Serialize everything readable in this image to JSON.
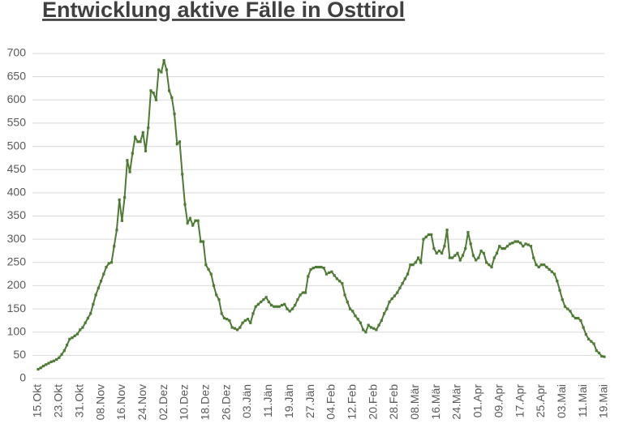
{
  "chart_data": {
    "type": "line",
    "title": "Entwicklung aktive Fälle in Osttirol",
    "color": "#4e7a34",
    "grid": true,
    "ylim": [
      0,
      700
    ],
    "yticks": [
      0,
      50,
      100,
      150,
      200,
      250,
      300,
      350,
      400,
      450,
      500,
      550,
      600,
      650,
      700
    ],
    "categories": [
      "15.Okt",
      null,
      null,
      null,
      null,
      null,
      null,
      null,
      "23.Okt",
      null,
      null,
      null,
      null,
      null,
      null,
      null,
      "31.Okt",
      null,
      null,
      null,
      null,
      null,
      null,
      null,
      "08.Nov",
      null,
      null,
      null,
      null,
      null,
      null,
      null,
      "16.Nov",
      null,
      null,
      null,
      null,
      null,
      null,
      null,
      "24.Nov",
      null,
      null,
      null,
      null,
      null,
      null,
      null,
      "02.Dez",
      null,
      null,
      null,
      null,
      null,
      null,
      null,
      "10.Dez",
      null,
      null,
      null,
      null,
      null,
      null,
      null,
      "18.Dez",
      null,
      null,
      null,
      null,
      null,
      null,
      null,
      "26.Dez",
      null,
      null,
      null,
      null,
      null,
      null,
      null,
      "03.Jän",
      null,
      null,
      null,
      null,
      null,
      null,
      null,
      "11.Jän",
      null,
      null,
      null,
      null,
      null,
      null,
      null,
      "19.Jän",
      null,
      null,
      null,
      null,
      null,
      null,
      null,
      "27.Jän",
      null,
      null,
      null,
      null,
      null,
      null,
      null,
      "04.Feb",
      null,
      null,
      null,
      null,
      null,
      null,
      null,
      "12.Feb",
      null,
      null,
      null,
      null,
      null,
      null,
      null,
      "20.Feb",
      null,
      null,
      null,
      null,
      null,
      null,
      null,
      "28.Feb",
      null,
      null,
      null,
      null,
      null,
      null,
      null,
      "08.Mär",
      null,
      null,
      null,
      null,
      null,
      null,
      null,
      "16.Mär",
      null,
      null,
      null,
      null,
      null,
      null,
      null,
      "24.Mär",
      null,
      null,
      null,
      null,
      null,
      null,
      null,
      "01.Apr",
      null,
      null,
      null,
      null,
      null,
      null,
      null,
      "09.Apr",
      null,
      null,
      null,
      null,
      null,
      null,
      null,
      "17.Apr",
      null,
      null,
      null,
      null,
      null,
      null,
      null,
      "25.Apr",
      null,
      null,
      null,
      null,
      null,
      null,
      null,
      "03.Mai",
      null,
      null,
      null,
      null,
      null,
      null,
      null,
      "11.Mai",
      null,
      null,
      null,
      null,
      null,
      null,
      null,
      "19.Mai"
    ],
    "values": [
      20,
      23,
      27,
      30,
      33,
      36,
      38,
      41,
      45,
      52,
      60,
      72,
      85,
      88,
      92,
      96,
      105,
      110,
      120,
      130,
      140,
      160,
      180,
      195,
      210,
      225,
      240,
      248,
      250,
      285,
      320,
      385,
      340,
      390,
      470,
      445,
      485,
      520,
      510,
      510,
      530,
      490,
      540,
      620,
      615,
      600,
      665,
      660,
      685,
      665,
      620,
      605,
      570,
      505,
      510,
      440,
      375,
      335,
      345,
      330,
      340,
      340,
      295,
      295,
      245,
      235,
      225,
      200,
      180,
      170,
      140,
      130,
      128,
      125,
      110,
      108,
      105,
      110,
      120,
      125,
      128,
      120,
      140,
      155,
      160,
      165,
      170,
      175,
      165,
      158,
      155,
      155,
      155,
      158,
      160,
      150,
      145,
      150,
      158,
      170,
      180,
      185,
      185,
      220,
      235,
      238,
      240,
      240,
      240,
      238,
      225,
      228,
      230,
      222,
      215,
      210,
      205,
      180,
      165,
      150,
      145,
      135,
      128,
      120,
      105,
      100,
      115,
      110,
      108,
      105,
      115,
      125,
      140,
      150,
      165,
      172,
      178,
      185,
      195,
      205,
      215,
      225,
      245,
      245,
      250,
      260,
      250,
      300,
      305,
      310,
      310,
      280,
      270,
      275,
      270,
      285,
      320,
      260,
      260,
      265,
      270,
      255,
      265,
      280,
      315,
      290,
      265,
      255,
      260,
      275,
      270,
      250,
      245,
      240,
      260,
      270,
      285,
      280,
      280,
      285,
      290,
      292,
      295,
      295,
      292,
      285,
      290,
      288,
      285,
      260,
      245,
      240,
      245,
      245,
      240,
      235,
      230,
      225,
      210,
      190,
      170,
      155,
      150,
      145,
      135,
      130,
      130,
      125,
      110,
      95,
      85,
      80,
      75,
      60,
      55,
      48,
      47
    ]
  }
}
